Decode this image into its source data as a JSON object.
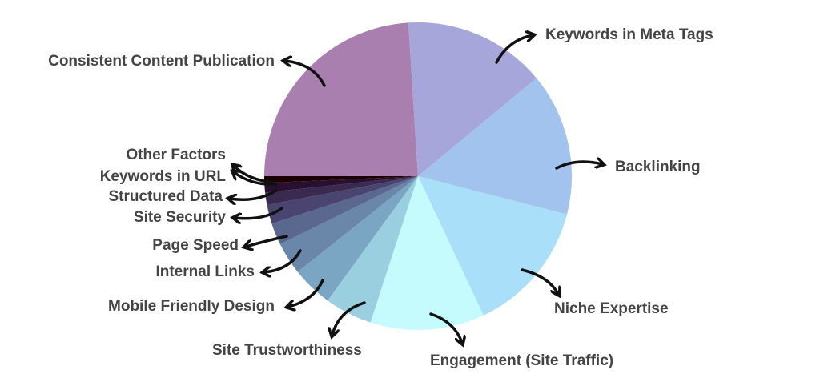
{
  "chart_data": {
    "type": "pie",
    "categories": [
      "Consistent Content Publication",
      "Keywords in Meta Tags",
      "Backlinking",
      "Niche Expertise",
      "Engagement (Site Traffic)",
      "Site Trustworthiness",
      "Mobile Friendly Design",
      "Internal Links",
      "Page Speed",
      "Site Security",
      "Structured Data",
      "Keywords in URL",
      "Other Factors"
    ],
    "values": [
      24,
      15,
      15,
      14,
      12,
      5,
      4.3,
      3.4,
      2.3,
      2,
      1.3,
      1,
      0.7
    ],
    "colors": [
      "#a97fb0",
      "#a6a6da",
      "#a2c3ee",
      "#a9dff8",
      "#c5fbfd",
      "#9acfe0",
      "#7ba6c3",
      "#6a86a9",
      "#5a6890",
      "#4a4570",
      "#3a2a50",
      "#2a1030",
      "#1a0000"
    ]
  }
}
